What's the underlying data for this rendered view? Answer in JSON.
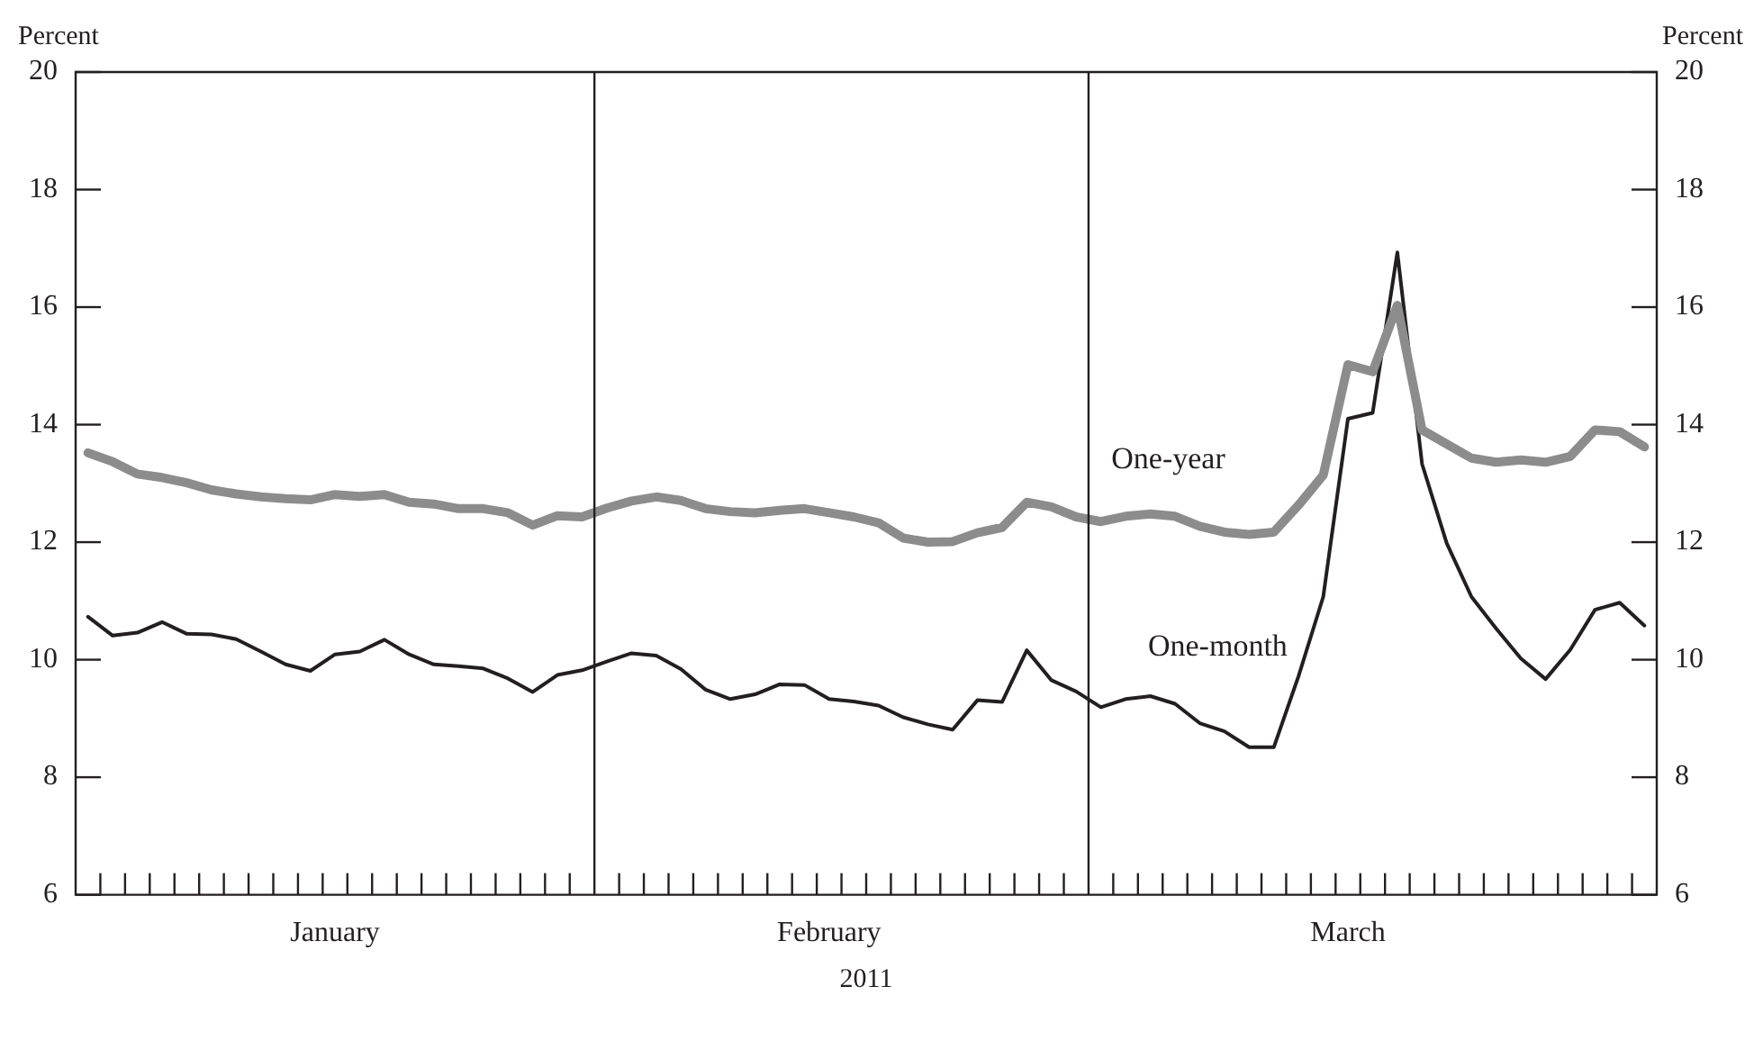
{
  "chart_data": {
    "type": "line",
    "xlabel": "2011",
    "ylabel": "Percent",
    "y2label": "Percent",
    "categories": [
      null,
      null,
      null,
      null,
      null,
      null,
      null,
      null,
      null,
      null,
      "January",
      null,
      null,
      null,
      null,
      null,
      null,
      null,
      null,
      null,
      null,
      null,
      null,
      null,
      null,
      null,
      null,
      null,
      null,
      null,
      "February",
      null,
      null,
      null,
      null,
      null,
      null,
      null,
      null,
      null,
      null,
      null,
      null,
      null,
      null,
      null,
      null,
      null,
      null,
      null,
      null,
      "March",
      null,
      null,
      null,
      null,
      null,
      null,
      null,
      null,
      null,
      null,
      null,
      null
    ],
    "ylim": [
      6,
      20
    ],
    "yticks": [
      6,
      8,
      10,
      12,
      14,
      16,
      18,
      20
    ],
    "y2lim": [
      6,
      20
    ],
    "y2ticks": [
      6,
      8,
      10,
      12,
      14,
      16,
      18,
      20
    ],
    "grid": false,
    "legend": false,
    "series": [
      {
        "name": "One-year",
        "color": "#8c8c8c",
        "values": [
          13.52,
          13.37,
          13.16,
          13.1,
          13.01,
          12.89,
          12.82,
          12.77,
          12.74,
          12.72,
          12.81,
          12.78,
          12.81,
          12.68,
          12.65,
          12.57,
          12.57,
          12.5,
          12.29,
          12.45,
          12.43,
          12.58,
          12.7,
          12.77,
          12.71,
          12.57,
          12.52,
          12.5,
          12.54,
          12.57,
          12.5,
          12.43,
          12.33,
          12.07,
          12.0,
          12.01,
          12.16,
          12.25,
          12.68,
          12.6,
          12.43,
          12.35,
          12.44,
          12.48,
          12.44,
          12.27,
          12.17,
          12.13,
          12.17,
          12.63,
          13.14,
          15.02,
          14.9,
          16.03,
          13.91,
          13.67,
          13.43,
          13.36,
          13.4,
          13.36,
          13.46,
          13.91,
          13.88,
          13.62
        ]
      },
      {
        "name": "One-month",
        "color": "#231f20",
        "values": [
          10.73,
          10.41,
          10.46,
          10.64,
          10.44,
          10.43,
          10.35,
          10.14,
          9.92,
          9.81,
          10.09,
          10.14,
          10.34,
          10.09,
          9.92,
          9.89,
          9.85,
          9.68,
          9.45,
          9.74,
          9.82,
          9.97,
          10.11,
          10.07,
          9.84,
          9.49,
          9.33,
          9.41,
          9.58,
          9.57,
          9.33,
          9.29,
          9.22,
          9.02,
          8.9,
          8.81,
          9.31,
          9.28,
          10.16,
          9.65,
          9.46,
          9.19,
          9.33,
          9.38,
          9.25,
          8.92,
          8.78,
          8.51,
          8.51,
          9.72,
          11.07,
          14.1,
          14.2,
          16.93,
          13.33,
          11.98,
          11.07,
          10.53,
          10.02,
          9.67,
          10.17,
          10.85,
          10.97,
          10.58
        ]
      }
    ]
  }
}
